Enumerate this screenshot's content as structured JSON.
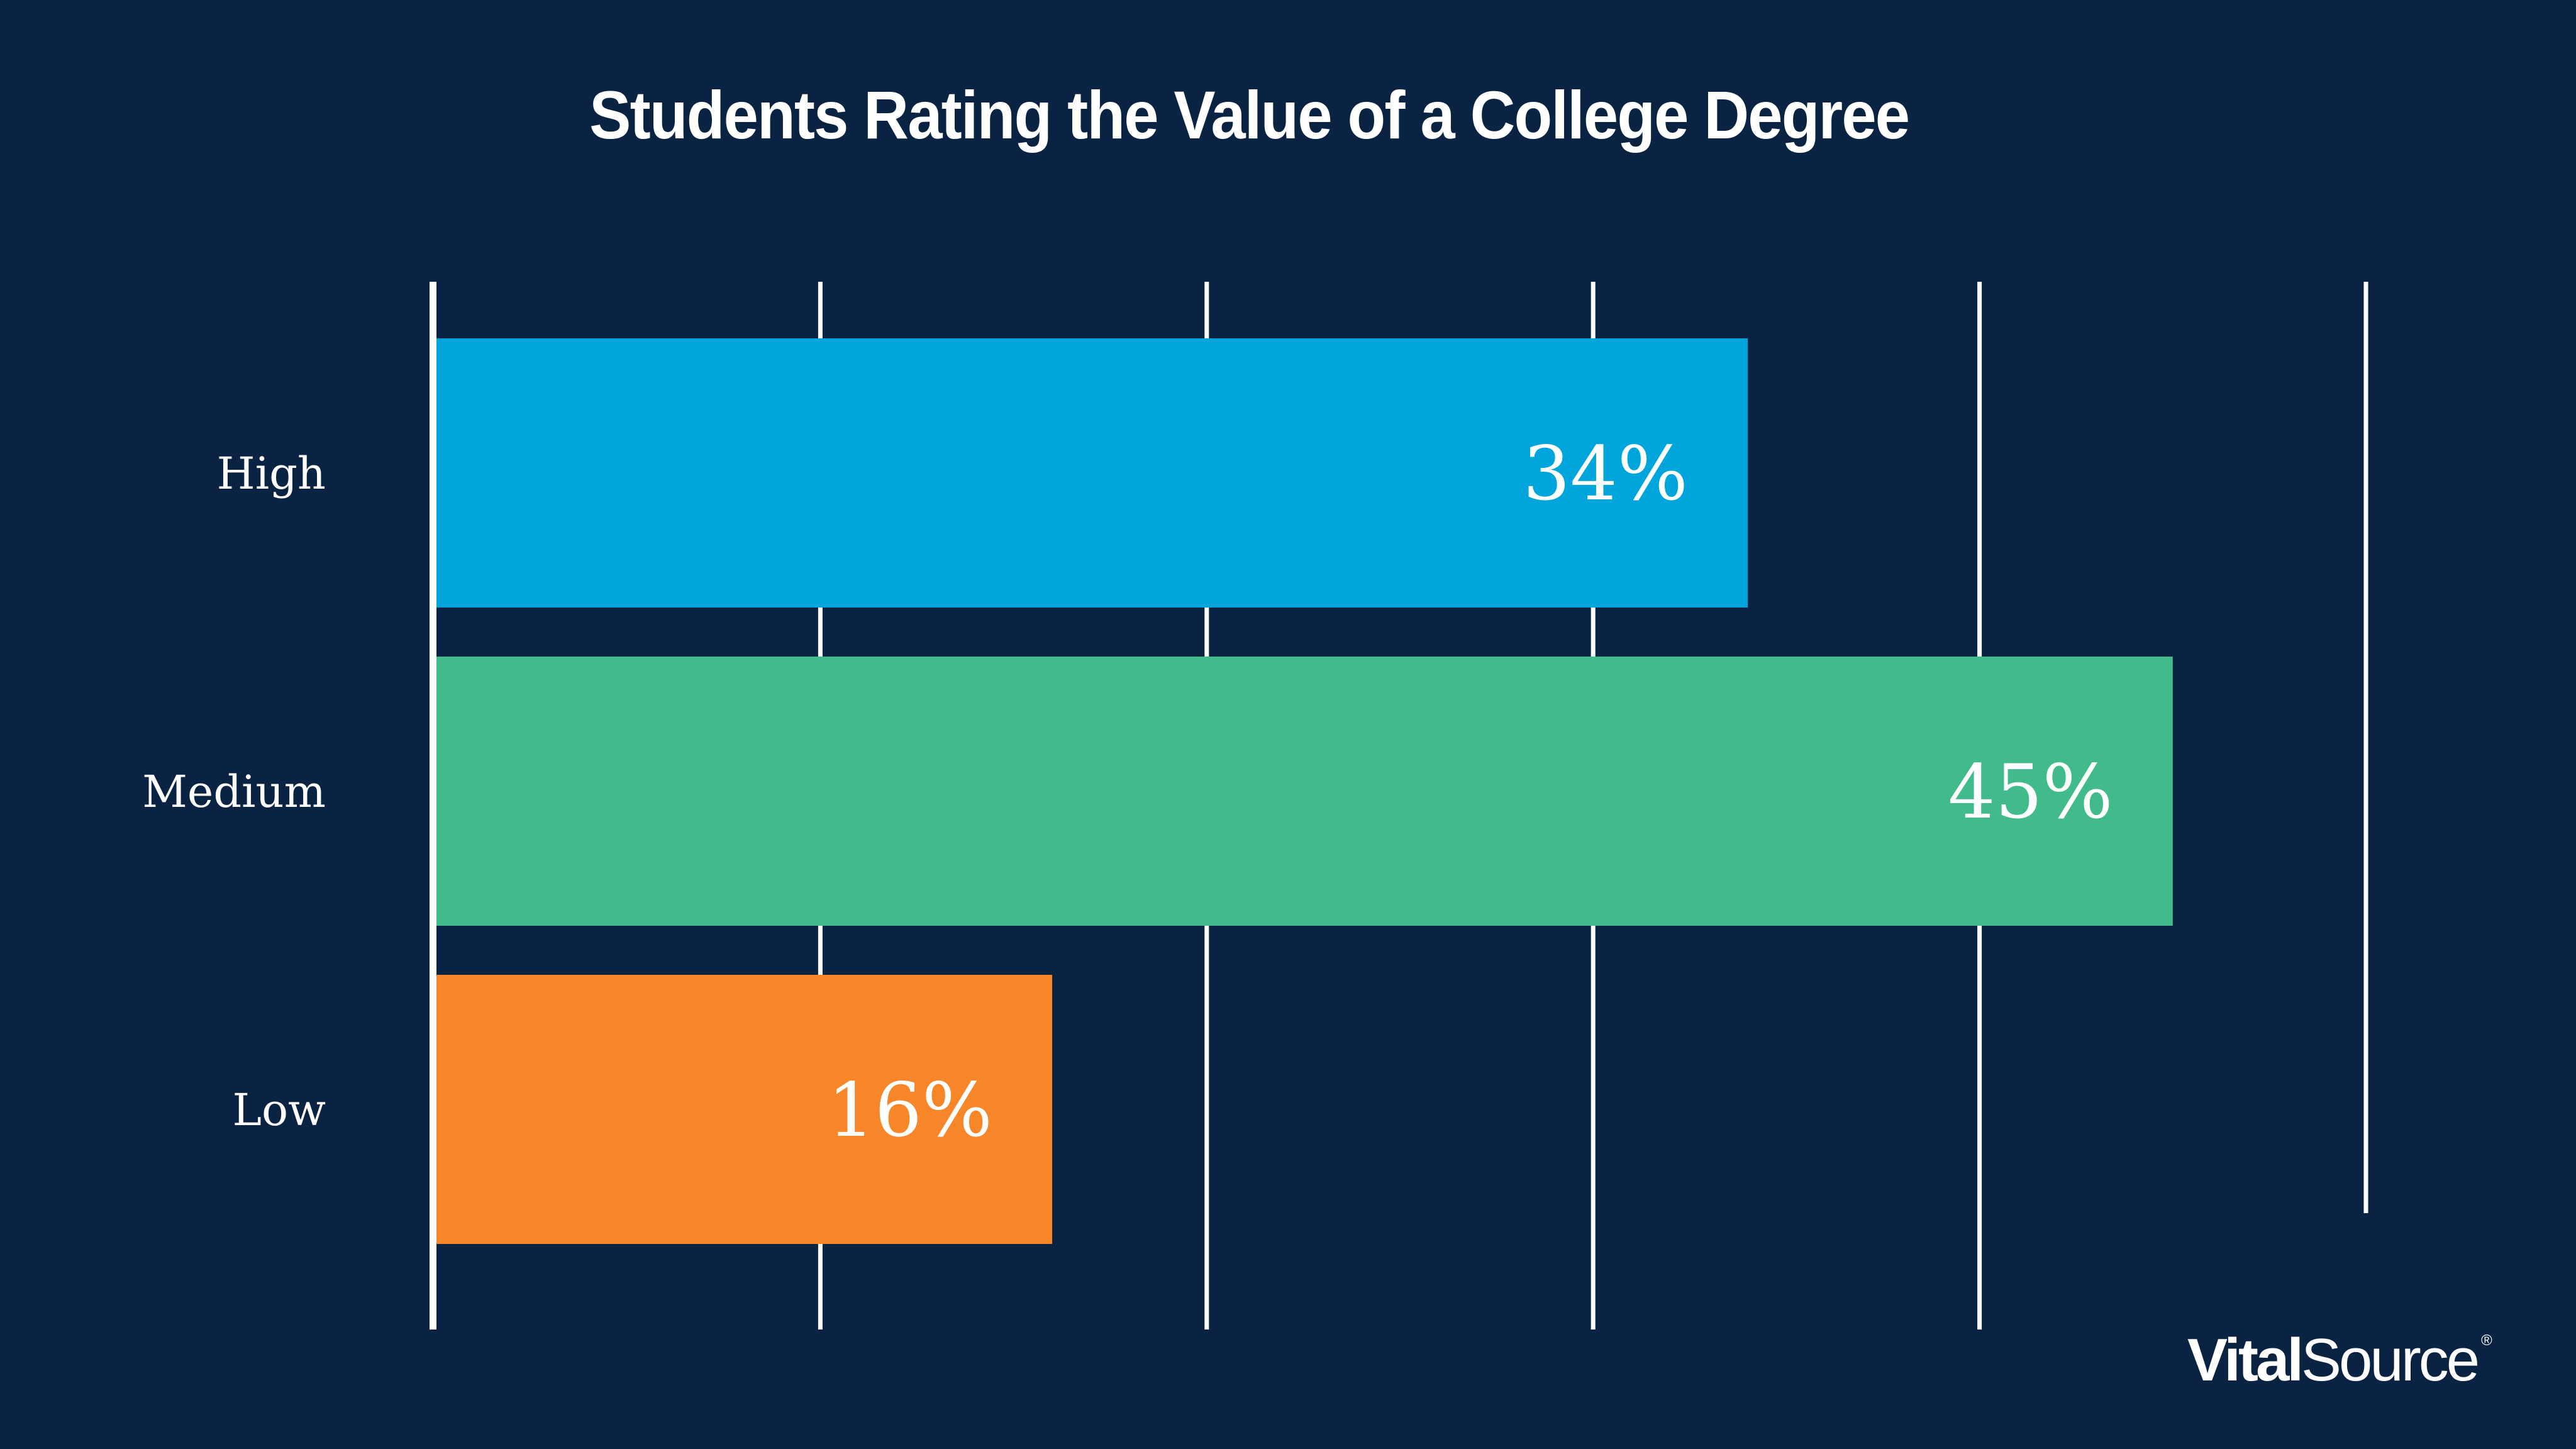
{
  "title": "Students Rating the Value of a College Degree",
  "brand": {
    "logo_bold": "Vital",
    "logo_regular": "Source",
    "logo_mark": "®"
  },
  "colors": {
    "background": "#0B2343",
    "high": "#00A6DB",
    "medium": "#41BB8B",
    "low": "#F68627",
    "gridline": "#FFFFFF",
    "text": "#FFFFFF"
  },
  "chart_data": {
    "type": "bar",
    "orientation": "horizontal",
    "title": "Students Rating the Value of a College Degree",
    "xlabel": "",
    "ylabel": "",
    "categories": [
      "High",
      "Medium",
      "Low"
    ],
    "values": [
      34,
      45,
      16
    ],
    "data_labels": [
      "34%",
      "45%",
      "16%"
    ],
    "unit": "%",
    "xlim": [
      0,
      50
    ],
    "gridlines": [
      0,
      10,
      20,
      30,
      40,
      50
    ],
    "grid": true,
    "tick_labels_shown": false,
    "legend": "none",
    "bar_colors": [
      "#00A6DB",
      "#41BB8B",
      "#F68627"
    ]
  }
}
